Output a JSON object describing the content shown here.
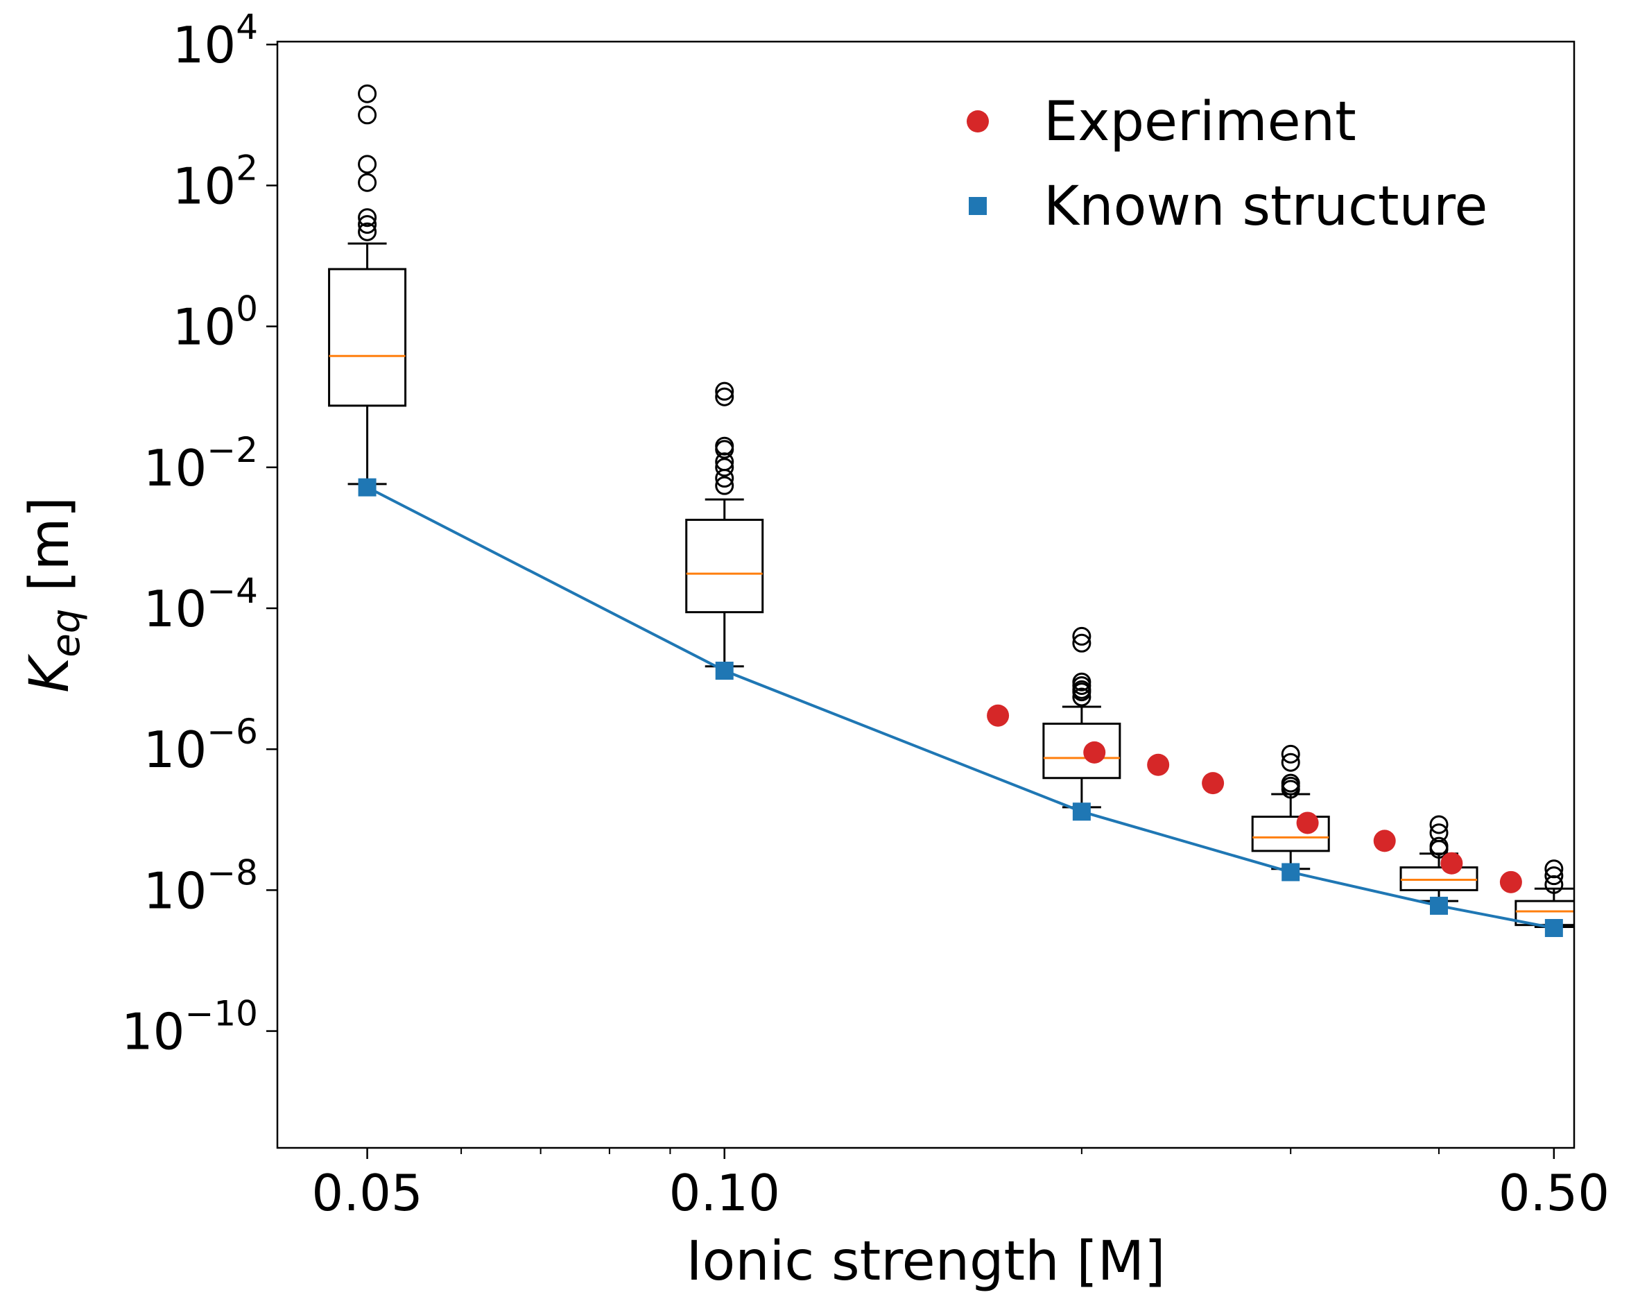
{
  "chart_data": {
    "type": "box",
    "title": "",
    "xlabel": "Ionic strength [M]",
    "ylabel": {
      "main": "K",
      "sub": "eq",
      "unit": " [m]"
    },
    "x_scale": "log",
    "y_scale": "log",
    "xlim": [
      0.042,
      0.52
    ],
    "ylim": [
      2.2e-12,
      11000.0
    ],
    "x_ticks": [
      {
        "value": 0.05,
        "label": "0.05"
      },
      {
        "value": 0.1,
        "label": "0.10"
      },
      {
        "value": 0.5,
        "label": "0.50"
      }
    ],
    "x_minor_ticks": [
      0.06,
      0.07,
      0.08,
      0.09,
      0.2,
      0.3,
      0.4
    ],
    "y_ticks": [
      {
        "value": 10000.0,
        "base": "10",
        "exp": "4"
      },
      {
        "value": 100.0,
        "base": "10",
        "exp": "2"
      },
      {
        "value": 1.0,
        "base": "10",
        "exp": "0"
      },
      {
        "value": 0.01,
        "base": "10",
        "exp": "−2"
      },
      {
        "value": 0.0001,
        "base": "10",
        "exp": "−4"
      },
      {
        "value": 1e-06,
        "base": "10",
        "exp": "−6"
      },
      {
        "value": 1e-08,
        "base": "10",
        "exp": "−8"
      },
      {
        "value": 1e-10,
        "base": "10",
        "exp": "−10"
      }
    ],
    "grid": false,
    "legend": {
      "position": "top-right",
      "entries": [
        {
          "label": "Experiment",
          "marker": "circle",
          "color": "#d62728"
        },
        {
          "label": "Known structure",
          "marker": "square",
          "color": "#1f77b4"
        }
      ]
    },
    "boxes": [
      {
        "x": 0.05,
        "q1": 0.075,
        "median": 0.38,
        "q3": 6.5,
        "whisker_low": 0.0058,
        "whisker_high": 15,
        "outliers": [
          2000,
          1000,
          200,
          110,
          35,
          28,
          22
        ]
      },
      {
        "x": 0.1,
        "q1": 8.8e-05,
        "median": 0.00031,
        "q3": 0.0018,
        "whisker_low": 1.5e-05,
        "whisker_high": 0.0035,
        "outliers": [
          0.12,
          0.1,
          0.02,
          0.018,
          0.012,
          0.01,
          0.007,
          0.0055
        ]
      },
      {
        "x": 0.2,
        "q1": 3.9e-07,
        "median": 7.5e-07,
        "q3": 2.3e-06,
        "whisker_low": 1.5e-07,
        "whisker_high": 4e-06,
        "outliers": [
          4e-05,
          3.2e-05,
          9e-06,
          8e-06,
          7e-06,
          6.5e-06,
          5.5e-06
        ]
      },
      {
        "x": 0.3,
        "q1": 3.6e-08,
        "median": 5.6e-08,
        "q3": 1.1e-07,
        "whisker_low": 2e-08,
        "whisker_high": 2.3e-07,
        "outliers": [
          8.5e-07,
          6.5e-07,
          3.3e-07,
          3e-07,
          2.7e-07
        ]
      },
      {
        "x": 0.4,
        "q1": 1e-08,
        "median": 1.4e-08,
        "q3": 2.1e-08,
        "whisker_low": 7e-09,
        "whisker_high": 3.3e-08,
        "outliers": [
          8.5e-08,
          6.5e-08,
          4.2e-08,
          3.8e-08
        ]
      },
      {
        "x": 0.5,
        "q1": 3.2e-09,
        "median": 5e-09,
        "q3": 7e-09,
        "whisker_low": 3e-09,
        "whisker_high": 1.05e-08,
        "outliers": [
          2e-08,
          1.6e-08,
          1.2e-08
        ]
      }
    ],
    "series": [
      {
        "name": "Known structure",
        "type": "line+square",
        "color": "#1f77b4",
        "x": [
          0.05,
          0.1,
          0.2,
          0.3,
          0.4,
          0.5
        ],
        "y": [
          0.0052,
          1.3e-05,
          1.3e-07,
          1.8e-08,
          6e-09,
          2.9e-09
        ]
      },
      {
        "name": "Experiment",
        "type": "scatter",
        "color": "#d62728",
        "x": [
          0.17,
          0.205,
          0.232,
          0.258,
          0.31,
          0.36,
          0.41,
          0.46
        ],
        "y": [
          3e-06,
          9e-07,
          6e-07,
          3.3e-07,
          9e-08,
          5e-08,
          2.4e-08,
          1.3e-08
        ]
      }
    ]
  }
}
